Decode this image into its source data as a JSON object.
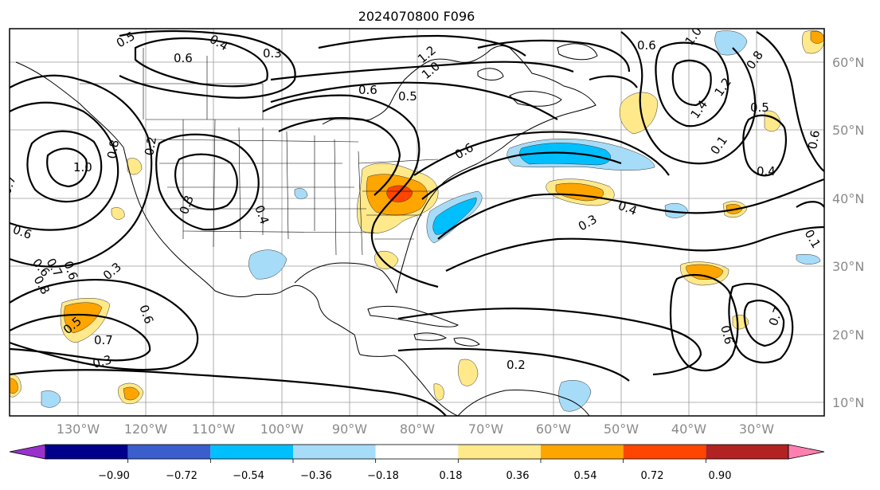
{
  "title": "2024070800 F096",
  "lon_labels": [
    "130°W",
    "120°W",
    "110°W",
    "100°W",
    "90°W",
    "80°W",
    "70°W",
    "60°W",
    "50°W",
    "40°W",
    "30°W"
  ],
  "lat_labels": [
    "60°N",
    "50°N",
    "40°N",
    "30°N",
    "20°N",
    "10°N"
  ],
  "colorbar": {
    "ticks": [
      "−0.90",
      "−0.72",
      "−0.54",
      "−0.36",
      "−0.18",
      "0.18",
      "0.36",
      "0.54",
      "0.72",
      "0.90"
    ],
    "colors": [
      "#9932cc",
      "#00008b",
      "#3a5fcd",
      "#00bfff",
      "#a6dcf8",
      "#ffffff",
      "#ffe98a",
      "#ffa500",
      "#ff4500",
      "#b22222",
      "#ff80b0"
    ]
  },
  "contour_labels": [
    "0.5",
    "0.6",
    "0.4",
    "0.3",
    "1.2",
    "1.0",
    "0.6",
    "0.5",
    "0.6",
    "1.0",
    "0.8",
    "1.4",
    "1.2",
    "0.5",
    "0.6",
    "0.4",
    "0.1",
    "1.0",
    "0.8",
    "0.2",
    "0.6",
    "0.3",
    "0.4",
    "0.6",
    "0.3",
    "0.4",
    "0.7",
    "0.6",
    "0.6",
    "0.7",
    "0.8",
    "0.3",
    "0.6",
    "0.5",
    "0.7",
    "0.3",
    "0.6",
    "0.7",
    "0.2",
    "0.1"
  ],
  "colors": {
    "land_line": "#000000",
    "grid": "#9a9a9a",
    "label_gray": "#8a8a8a"
  }
}
